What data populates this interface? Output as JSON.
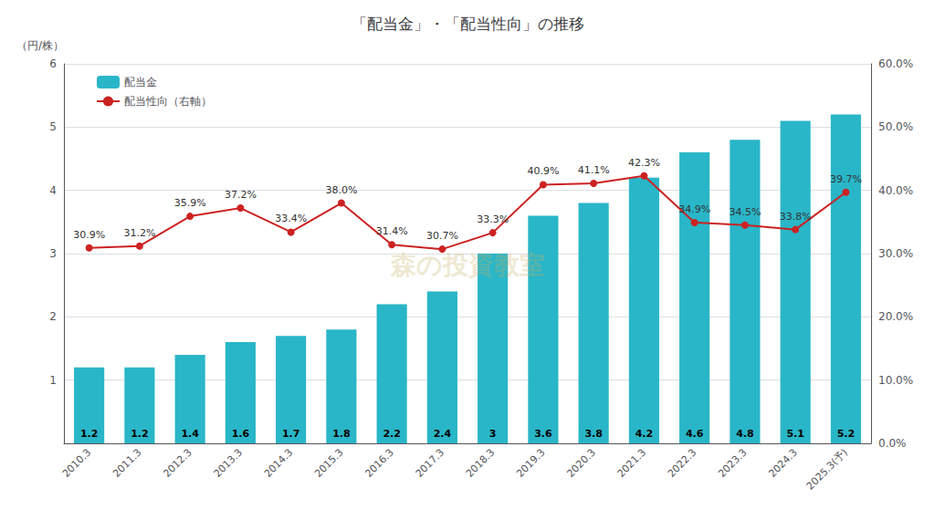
{
  "chart_data": {
    "type": "bar",
    "title": "「配当金」・「配当性向」の推移",
    "ylabel": "（円/株）",
    "categories": [
      "2010.3",
      "2011.3",
      "2012.3",
      "2013.3",
      "2014.3",
      "2015.3",
      "2016.3",
      "2017.3",
      "2018.3",
      "2019.3",
      "2020.3",
      "2021.3",
      "2022.3",
      "2023.3",
      "2024.3",
      "2025.3(予)"
    ],
    "series": [
      {
        "name": "配当金",
        "type": "bar",
        "color": "#29b6c8",
        "values": [
          1.2,
          1.2,
          1.4,
          1.6,
          1.7,
          1.8,
          2.2,
          2.4,
          3,
          3.6,
          3.8,
          4.2,
          4.6,
          4.8,
          5.1,
          5.2
        ]
      },
      {
        "name": "配当性向（右軸）",
        "type": "line",
        "axis": "y2",
        "color": "#cc2222",
        "marker": "circle",
        "values": [
          30.9,
          31.2,
          35.9,
          37.2,
          33.4,
          38.0,
          31.4,
          30.7,
          33.3,
          40.9,
          41.1,
          42.3,
          34.9,
          34.5,
          33.8,
          39.7
        ],
        "value_labels": [
          "30.9%",
          "31.2%",
          "35.9%",
          "37.2%",
          "33.4%",
          "38.0%",
          "31.4%",
          "30.7%",
          "33.3%",
          "40.9%",
          "41.1%",
          "42.3%",
          "34.9%",
          "34.5%",
          "33.8%",
          "39.7%"
        ]
      }
    ],
    "ylim": [
      0,
      6
    ],
    "yticks": [
      1,
      2,
      3,
      4,
      5,
      6
    ],
    "y2lim": [
      0,
      60
    ],
    "y2ticks": [
      {
        "value": 0,
        "label": "0.0%"
      },
      {
        "value": 10,
        "label": "10.0%"
      },
      {
        "value": 20,
        "label": "20.0%"
      },
      {
        "value": 30,
        "label": "30.0%"
      },
      {
        "value": 40,
        "label": "40.0%"
      },
      {
        "value": 50,
        "label": "50.0%"
      },
      {
        "value": 60,
        "label": "60.0%"
      }
    ],
    "grid": true,
    "legend": "upper left",
    "data_labels": true,
    "annotations": [
      "森の投資教室"
    ]
  }
}
